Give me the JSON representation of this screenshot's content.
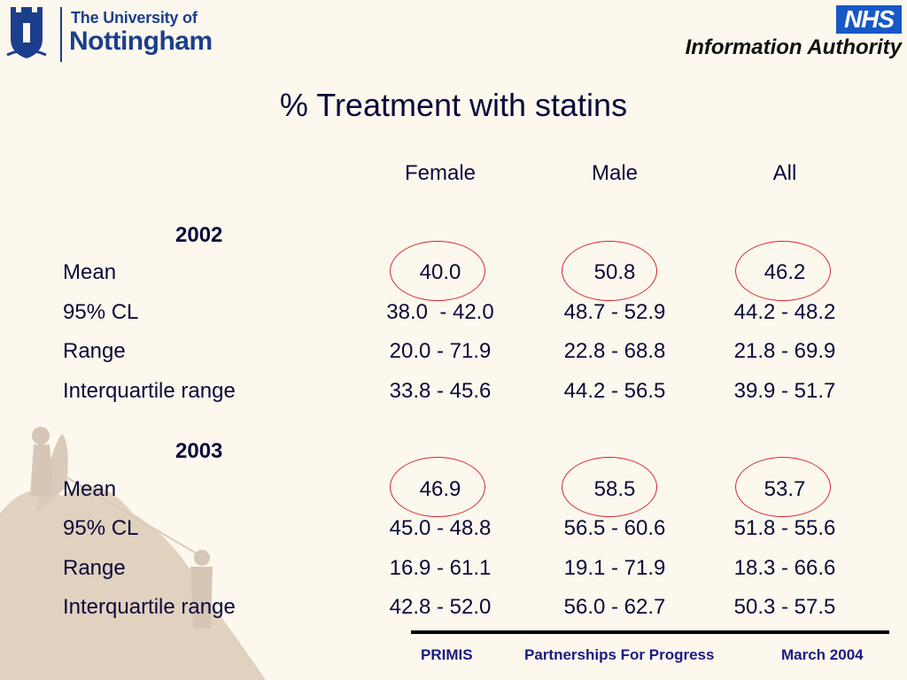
{
  "logos": {
    "university_line1": "The University of",
    "university_line2": "Nottingham",
    "nhs": "NHS",
    "nhs_subtitle": "Information Authority"
  },
  "title": "% Treatment with statins",
  "columns": [
    "Female",
    "Male",
    "All"
  ],
  "sections": [
    {
      "year": "2002",
      "rows": [
        {
          "label": "Mean",
          "values": [
            "40.0",
            "50.8",
            "46.2"
          ]
        },
        {
          "label": "95% CL",
          "values": [
            "38.0  - 42.0",
            "48.7 - 52.9",
            "44.2 - 48.2"
          ]
        },
        {
          "label": "Range",
          "values": [
            "20.0 - 71.9",
            "22.8 - 68.8",
            "21.8 - 69.9"
          ]
        },
        {
          "label": "Interquartile range",
          "values": [
            "33.8 - 45.6",
            "44.2 - 56.5",
            "39.9 - 51.7"
          ]
        }
      ]
    },
    {
      "year": "2003",
      "rows": [
        {
          "label": "Mean",
          "values": [
            "46.9",
            "58.5",
            "53.7"
          ]
        },
        {
          "label": "95% CL",
          "values": [
            "45.0 - 48.8",
            "56.5 - 60.6",
            "51.8 - 55.6"
          ]
        },
        {
          "label": "Range",
          "values": [
            "16.9 - 61.1",
            "19.1 - 71.9",
            "18.3 - 66.6"
          ]
        },
        {
          "label": "Interquartile range",
          "values": [
            "42.8 - 52.0",
            "56.0 - 62.7",
            "50.3 - 57.5"
          ]
        }
      ]
    }
  ],
  "footer": {
    "left": "PRIMIS",
    "center": "Partnerships For Progress",
    "right": "March 2004"
  },
  "colors": {
    "text": "#0a0a3a",
    "highlight_ring": "#d8252e",
    "uon_blue": "#1b3f8c",
    "nhs_blue": "#1758c6",
    "footer_text": "#1a1a80"
  }
}
